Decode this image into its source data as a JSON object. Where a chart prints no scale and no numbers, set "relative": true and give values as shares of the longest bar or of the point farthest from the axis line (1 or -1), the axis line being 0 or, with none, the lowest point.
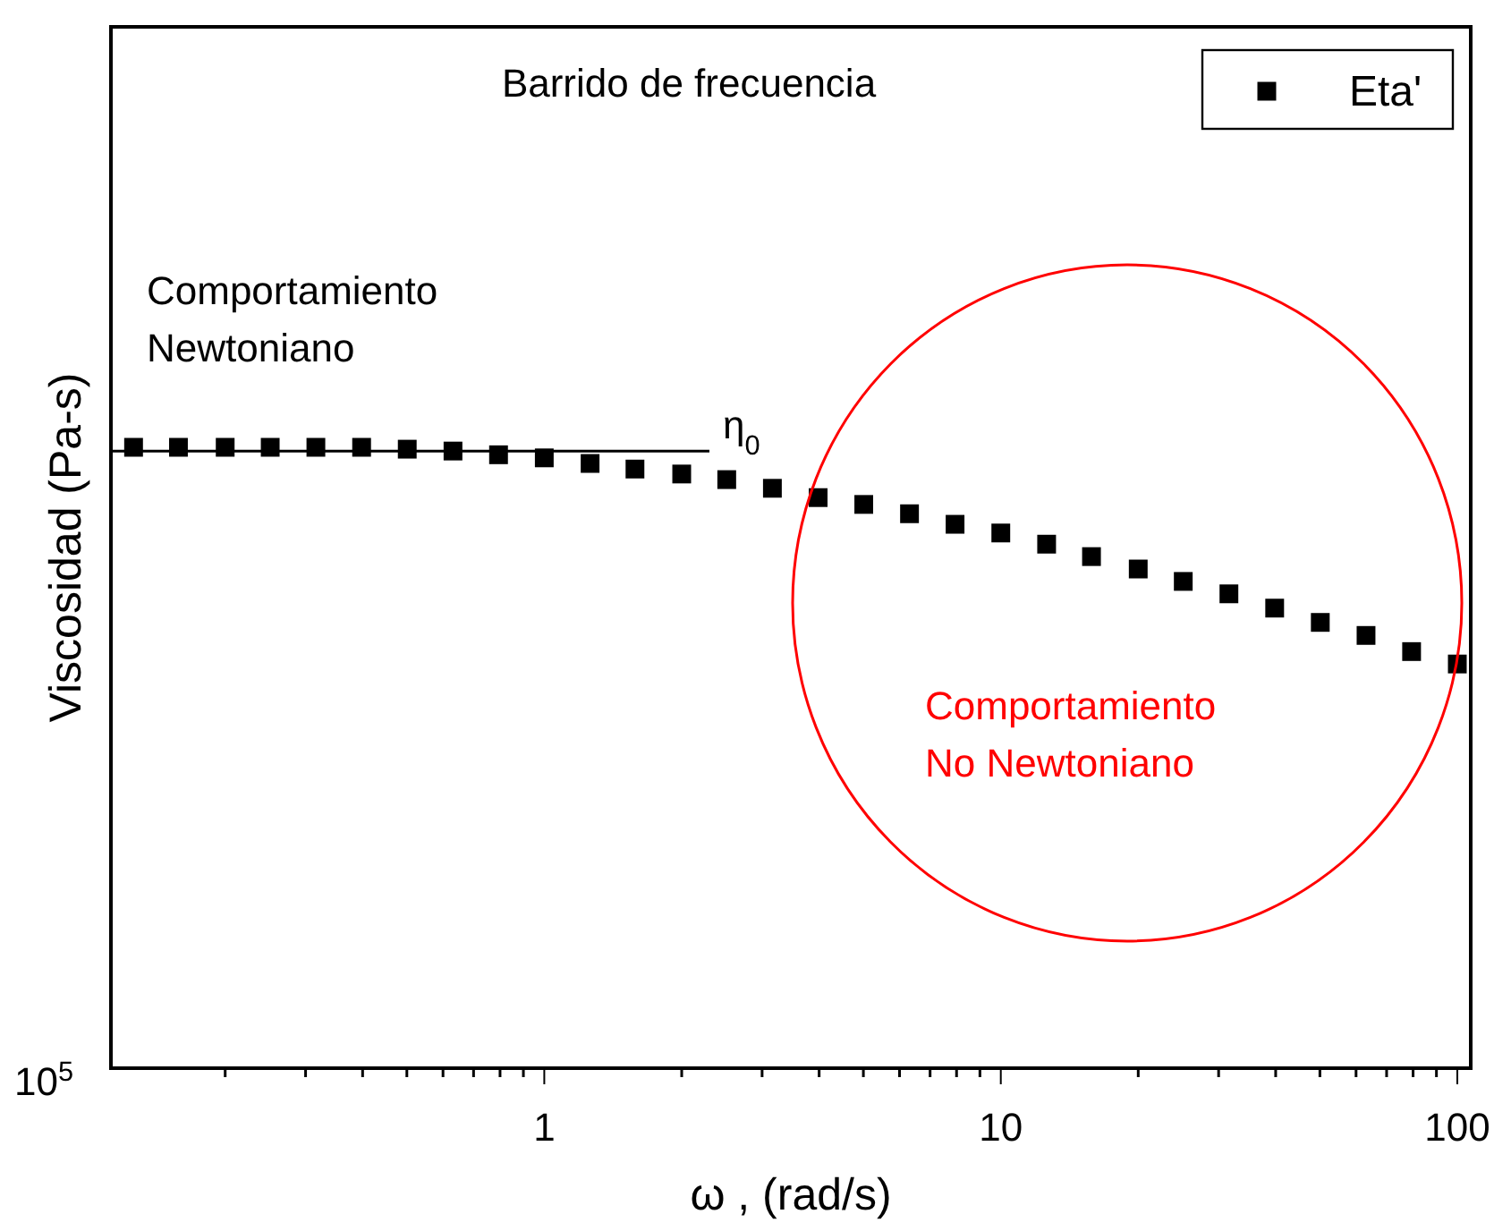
{
  "chart_data": {
    "type": "scatter",
    "title": "Barrido de frecuencia",
    "xlabel": "ω , (rad/s)",
    "ylabel": "Viscosidad (Pa-s)",
    "log": "x",
    "relative": true,
    "xlim": [
      0.1124,
      107
    ],
    "xticks": [
      1,
      10,
      100
    ],
    "marker": "square",
    "legend": "top right",
    "grid": false,
    "x": [
      0.126,
      0.158,
      0.2,
      0.251,
      0.316,
      0.398,
      0.501,
      0.631,
      0.794,
      1,
      1.26,
      1.58,
      2,
      2.51,
      3.16,
      3.98,
      5.01,
      6.31,
      7.94,
      10,
      12.6,
      15.8,
      20,
      25.1,
      31.6,
      39.8,
      50.1,
      63.1,
      79.4,
      100
    ],
    "series": [
      {
        "name": "Eta'",
        "color": "#000000",
        "values": [
          1,
          1,
          1,
          1,
          1,
          1,
          0.997,
          0.994,
          0.988,
          0.983,
          0.974,
          0.965,
          0.957,
          0.948,
          0.934,
          0.919,
          0.908,
          0.893,
          0.876,
          0.862,
          0.844,
          0.824,
          0.804,
          0.784,
          0.764,
          0.741,
          0.718,
          0.697,
          0.671,
          0.651
        ]
      },
      {
        "type": "line",
        "color": "#000000",
        "marker": "none",
        "x": [
          0.1124,
          2.3
        ],
        "values": [
          0.994,
          0.994
        ]
      }
    ],
    "annotations": [
      "Comportamiento Newtoniano",
      "η$_{0}$",
      "Comportamiento No Newtoniano",
      "10$^{5}$"
    ]
  }
}
